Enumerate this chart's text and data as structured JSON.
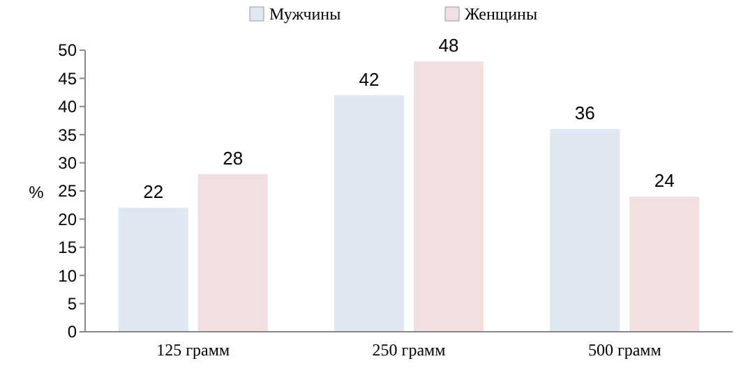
{
  "chart_data": {
    "type": "bar",
    "ylabel": "%",
    "categories": [
      "125 грамм",
      "250 грамм",
      "500 грамм"
    ],
    "series": [
      {
        "name": "Мужчины",
        "color": "#dfe7f2",
        "values": [
          22,
          42,
          36
        ]
      },
      {
        "name": "Женщины",
        "color": "#f2dfdf",
        "values": [
          28,
          48,
          24
        ]
      }
    ],
    "ylim": [
      0,
      50
    ],
    "yticks": [
      0,
      5,
      10,
      15,
      20,
      25,
      30,
      35,
      40,
      45,
      50
    ],
    "data_labels": true,
    "legend": "top",
    "grid": false
  }
}
